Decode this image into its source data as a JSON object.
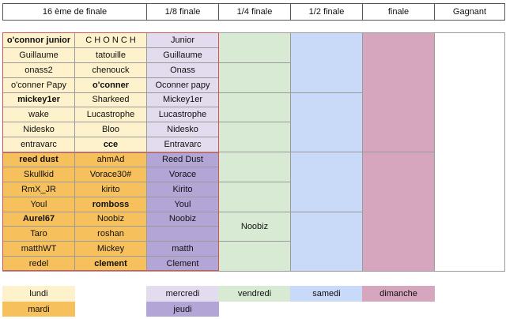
{
  "headers": [
    "16 ème de finale",
    "1/8 finale",
    "1/4 finale",
    "1/2 finale",
    "finale",
    "Gagnant"
  ],
  "round16_left": [
    {
      "name": "o'connor junior",
      "bold": true,
      "day": "lundi"
    },
    {
      "name": "Guillaume",
      "bold": false,
      "day": "lundi"
    },
    {
      "name": "onass2",
      "bold": false,
      "day": "lundi"
    },
    {
      "name": "o'conner Papy",
      "bold": false,
      "day": "lundi"
    },
    {
      "name": "mickey1er",
      "bold": true,
      "day": "lundi"
    },
    {
      "name": "wake",
      "bold": false,
      "day": "lundi"
    },
    {
      "name": "Nidesko",
      "bold": false,
      "day": "lundi"
    },
    {
      "name": "entravarc",
      "bold": false,
      "day": "lundi"
    },
    {
      "name": "reed dust",
      "bold": true,
      "day": "mardi"
    },
    {
      "name": "Skullkid",
      "bold": false,
      "day": "mardi"
    },
    {
      "name": "RmX_JR",
      "bold": false,
      "day": "mardi"
    },
    {
      "name": "Youl",
      "bold": false,
      "day": "mardi"
    },
    {
      "name": "Aurel67",
      "bold": true,
      "day": "mardi"
    },
    {
      "name": "Taro",
      "bold": false,
      "day": "mardi"
    },
    {
      "name": "matthWT",
      "bold": false,
      "day": "mardi"
    },
    {
      "name": "redel",
      "bold": false,
      "day": "mardi"
    }
  ],
  "round16_right": [
    {
      "name": "C H O N C H",
      "bold": false,
      "day": "lundi"
    },
    {
      "name": "tatouille",
      "bold": false,
      "day": "lundi"
    },
    {
      "name": "chenouck",
      "bold": false,
      "day": "lundi"
    },
    {
      "name": "o'conner",
      "bold": true,
      "day": "lundi"
    },
    {
      "name": "Sharkeed",
      "bold": false,
      "day": "lundi"
    },
    {
      "name": "Lucastrophe",
      "bold": false,
      "day": "lundi"
    },
    {
      "name": "Bloo",
      "bold": false,
      "day": "lundi"
    },
    {
      "name": "cce",
      "bold": true,
      "day": "lundi"
    },
    {
      "name": "ahmAd",
      "bold": false,
      "day": "mardi"
    },
    {
      "name": "Vorace30#",
      "bold": false,
      "day": "mardi"
    },
    {
      "name": "kirito",
      "bold": false,
      "day": "mardi"
    },
    {
      "name": "romboss",
      "bold": true,
      "day": "mardi"
    },
    {
      "name": "Noobiz",
      "bold": false,
      "day": "mardi"
    },
    {
      "name": "roshan",
      "bold": false,
      "day": "mardi"
    },
    {
      "name": "Mickey",
      "bold": false,
      "day": "mardi"
    },
    {
      "name": "clement",
      "bold": true,
      "day": "mardi"
    }
  ],
  "round8": [
    {
      "name": "Junior",
      "day": "mercredi"
    },
    {
      "name": "Guillaume",
      "day": "mercredi"
    },
    {
      "name": "Onass",
      "day": "mercredi"
    },
    {
      "name": "Oconner papy",
      "day": "mercredi"
    },
    {
      "name": "Mickey1er",
      "day": "mercredi"
    },
    {
      "name": "Lucastrophe",
      "day": "mercredi"
    },
    {
      "name": "Nidesko",
      "day": "mercredi"
    },
    {
      "name": "Entravarc",
      "day": "mercredi"
    },
    {
      "name": "Reed Dust",
      "day": "jeudi"
    },
    {
      "name": "Vorace",
      "day": "jeudi"
    },
    {
      "name": "Kirito",
      "day": "jeudi"
    },
    {
      "name": "Youl",
      "day": "jeudi"
    },
    {
      "name": "Noobiz",
      "day": "jeudi"
    },
    {
      "name": "",
      "day": "jeudi"
    },
    {
      "name": "matth",
      "day": "jeudi"
    },
    {
      "name": "Clement",
      "day": "jeudi"
    }
  ],
  "quarter": [
    "",
    "",
    "",
    "",
    "",
    "",
    "Noobiz",
    ""
  ],
  "semi": [
    "",
    "",
    "",
    ""
  ],
  "final": [
    "",
    ""
  ],
  "winner": "",
  "legend": {
    "lundi": "lundi",
    "mardi": "mardi",
    "mercredi": "mercredi",
    "jeudi": "jeudi",
    "vendredi": "vendredi",
    "samedi": "samedi",
    "dimanche": "dimanche"
  },
  "colors": {
    "lundi": "#fef2cc",
    "mardi": "#f6c05d",
    "mercredi": "#e3dcef",
    "jeudi": "#b3a6d6",
    "vendredi": "#d8ead3",
    "samedi": "#c8daf8",
    "dimanche": "#d5a6bd",
    "highlight": "#d9534f"
  }
}
